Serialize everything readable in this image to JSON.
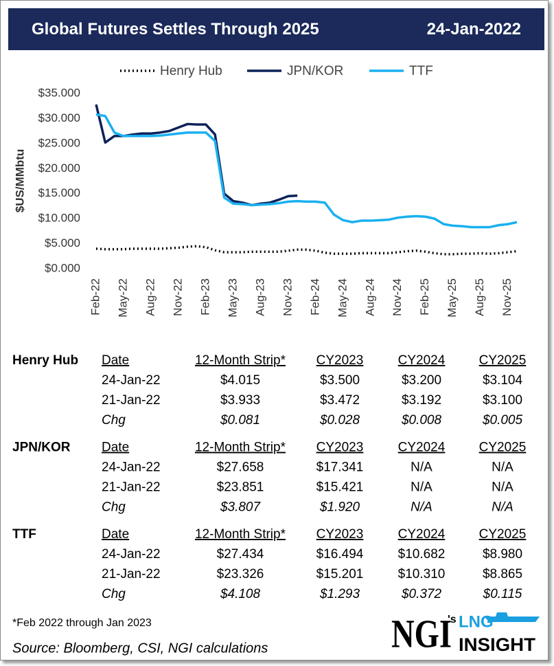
{
  "header": {
    "title": "Global Futures Settles Through 2025",
    "date": "24-Jan-2022"
  },
  "chart_data": {
    "type": "line",
    "ylabel": "$US/MMbtu",
    "categories": [
      "Feb-22",
      null,
      null,
      "May-22",
      null,
      null,
      "Aug-22",
      null,
      null,
      "Nov-22",
      null,
      null,
      "Feb-23",
      null,
      null,
      "May-23",
      null,
      null,
      "Aug-23",
      null,
      null,
      "Nov-23",
      null,
      null,
      "Feb-24",
      null,
      null,
      "May-24",
      null,
      null,
      "Aug-24",
      null,
      null,
      "Nov-24",
      null,
      null,
      "Feb-25",
      null,
      null,
      "May-25",
      null,
      null,
      "Aug-25",
      null,
      null,
      "Nov-25",
      null
    ],
    "series": [
      {
        "name": "Henry Hub",
        "color": "#000000",
        "line_style": "dotted",
        "values": [
          4.0,
          3.9,
          3.9,
          3.9,
          4.0,
          4.0,
          4.0,
          4.0,
          4.1,
          4.2,
          4.4,
          4.5,
          4.3,
          3.7,
          3.3,
          3.3,
          3.3,
          3.4,
          3.4,
          3.4,
          3.4,
          3.6,
          3.8,
          3.8,
          3.6,
          3.2,
          3.0,
          3.0,
          3.0,
          3.1,
          3.1,
          3.1,
          3.1,
          3.3,
          3.5,
          3.6,
          3.4,
          3.1,
          2.9,
          2.9,
          3.0,
          3.0,
          3.1,
          3.0,
          3.1,
          3.3,
          3.5
        ]
      },
      {
        "name": "JPN/KOR",
        "color": "#0d2258",
        "line_style": "solid",
        "values": [
          32.8,
          25.2,
          26.5,
          26.5,
          26.8,
          27.0,
          27.0,
          27.2,
          27.5,
          28.2,
          28.9,
          28.8,
          28.8,
          26.8,
          15.0,
          13.5,
          13.2,
          12.7,
          13.0,
          13.2,
          13.8,
          14.5,
          14.6,
          null,
          null,
          null,
          null,
          null,
          null,
          null,
          null,
          null,
          null,
          null,
          null,
          null,
          null,
          null,
          null,
          null,
          null,
          null,
          null,
          null,
          null,
          null,
          null
        ]
      },
      {
        "name": "TTF",
        "color": "#1ab0f0",
        "line_style": "solid",
        "values": [
          30.8,
          30.5,
          27.2,
          26.5,
          26.5,
          26.5,
          26.5,
          26.6,
          26.8,
          27.0,
          27.2,
          27.2,
          27.2,
          25.5,
          14.2,
          13.0,
          12.9,
          12.7,
          12.8,
          12.9,
          13.1,
          13.4,
          13.5,
          13.4,
          13.4,
          13.2,
          10.8,
          9.7,
          9.3,
          9.6,
          9.6,
          9.7,
          9.8,
          10.2,
          10.4,
          10.5,
          10.4,
          10.0,
          8.9,
          8.6,
          8.5,
          8.3,
          8.3,
          8.3,
          8.7,
          8.9,
          9.3
        ]
      }
    ],
    "ylim": [
      0,
      35
    ],
    "yticks": [
      {
        "value": 0,
        "label": "$0.000"
      },
      {
        "value": 5,
        "label": "$5.000"
      },
      {
        "value": 10,
        "label": "$10.000"
      },
      {
        "value": 15,
        "label": "$15.000"
      },
      {
        "value": 20,
        "label": "$20.000"
      },
      {
        "value": 25,
        "label": "$25.000"
      },
      {
        "value": 30,
        "label": "$30.000"
      },
      {
        "value": 35,
        "label": "$35.000"
      }
    ],
    "grid": false,
    "legend": "top"
  },
  "tables": [
    {
      "name": "Henry Hub",
      "columns": [
        "Date",
        "12-Month Strip*",
        "CY2023",
        "CY2024",
        "CY2025"
      ],
      "rows": [
        [
          "24-Jan-22",
          "$4.015",
          "$3.500",
          "$3.200",
          "$3.104"
        ],
        [
          "21-Jan-22",
          "$3.933",
          "$3.472",
          "$3.192",
          "$3.100"
        ],
        [
          "Chg",
          "$0.081",
          "$0.028",
          "$0.008",
          "$0.005"
        ]
      ]
    },
    {
      "name": "JPN/KOR",
      "columns": [
        "Date",
        "12-Month Strip*",
        "CY2023",
        "CY2024",
        "CY2025"
      ],
      "rows": [
        [
          "24-Jan-22",
          "$27.658",
          "$17.341",
          "N/A",
          "N/A"
        ],
        [
          "21-Jan-22",
          "$23.851",
          "$15.421",
          "N/A",
          "N/A"
        ],
        [
          "Chg",
          "$3.807",
          "$1.920",
          "N/A",
          "N/A"
        ]
      ]
    },
    {
      "name": "TTF",
      "columns": [
        "Date",
        "12-Month Strip*",
        "CY2023",
        "CY2024",
        "CY2025"
      ],
      "rows": [
        [
          "24-Jan-22",
          "$27.434",
          "$16.494",
          "$10.682",
          "$8.980"
        ],
        [
          "21-Jan-22",
          "$23.326",
          "$15.201",
          "$10.310",
          "$8.865"
        ],
        [
          "Chg",
          "$4.108",
          "$1.293",
          "$0.372",
          "$0.115"
        ]
      ]
    }
  ],
  "footnote": "*Feb 2022 through Jan 2023",
  "source": "Source: Bloomberg, CSI, NGI calculations",
  "logo": {
    "brand": "NGI",
    "possessive": "'s",
    "product": "LNG",
    "subtitle": "INSIGHT"
  }
}
